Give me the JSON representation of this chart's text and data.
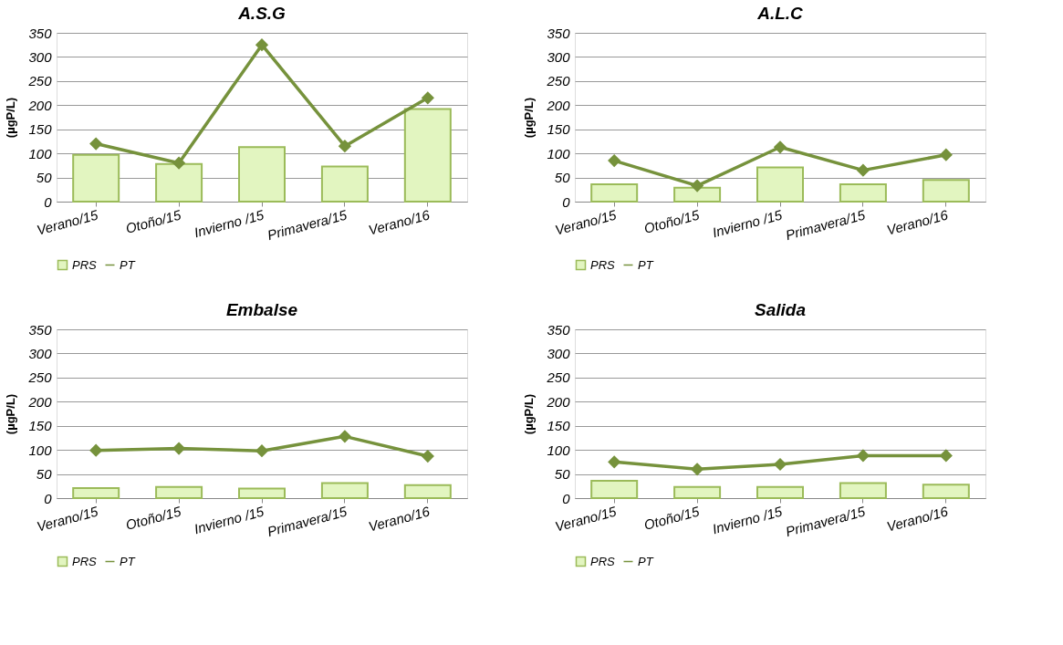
{
  "chart_data": [
    {
      "type": "bar",
      "title": "A.S.G",
      "ylabel": "(µgP/L)",
      "categories": [
        "Verano/15",
        "Otoño/15",
        "Invierno /15",
        "Primavera/15",
        "Verano/16"
      ],
      "ylim": [
        0,
        350
      ],
      "yticks": [
        0,
        50,
        100,
        150,
        200,
        250,
        300,
        350
      ],
      "grid": "y",
      "legend": "bottom",
      "marker": "diamond",
      "series": [
        {
          "name": "PRS",
          "type": "bar",
          "color": "#e2f5c0",
          "values": [
            97,
            78,
            113,
            73,
            192
          ]
        },
        {
          "name": "PT",
          "type": "line",
          "color": "#76923c",
          "values": [
            120,
            80,
            325,
            115,
            215
          ]
        }
      ]
    },
    {
      "type": "bar",
      "title": "A.L.C",
      "ylabel": "(µgP/L)",
      "categories": [
        "Verano/15",
        "Otoño/15",
        "Invierno /15",
        "Primavera/15",
        "Verano/16"
      ],
      "ylim": [
        0,
        350
      ],
      "yticks": [
        0,
        50,
        100,
        150,
        200,
        250,
        300,
        350
      ],
      "grid": "y",
      "legend": "bottom",
      "marker": "diamond",
      "series": [
        {
          "name": "PRS",
          "type": "bar",
          "color": "#e2f5c0",
          "values": [
            36,
            29,
            71,
            36,
            45
          ]
        },
        {
          "name": "PT",
          "type": "line",
          "color": "#76923c",
          "values": [
            85,
            33,
            113,
            65,
            97
          ]
        }
      ]
    },
    {
      "type": "bar",
      "title": "Embalse",
      "ylabel": "(µgP/L)",
      "categories": [
        "Verano/15",
        "Otoño/15",
        "Invierno /15",
        "Primavera/15",
        "Verano/16"
      ],
      "ylim": [
        0,
        350
      ],
      "yticks": [
        0,
        50,
        100,
        150,
        200,
        250,
        300,
        350
      ],
      "grid": "y",
      "legend": "bottom",
      "marker": "diamond",
      "series": [
        {
          "name": "PRS",
          "type": "bar",
          "color": "#e2f5c0",
          "values": [
            21,
            23,
            20,
            31,
            27
          ]
        },
        {
          "name": "PT",
          "type": "line",
          "color": "#76923c",
          "values": [
            99,
            103,
            98,
            128,
            87
          ]
        }
      ]
    },
    {
      "type": "bar",
      "title": "Salida",
      "ylabel": "(µgP/L)",
      "categories": [
        "Verano/15",
        "Otoño/15",
        "Invierno /15",
        "Primavera/15",
        "Verano/16"
      ],
      "ylim": [
        0,
        350
      ],
      "yticks": [
        0,
        50,
        100,
        150,
        200,
        250,
        300,
        350
      ],
      "grid": "y",
      "legend": "bottom",
      "marker": "diamond",
      "series": [
        {
          "name": "PRS",
          "type": "bar",
          "color": "#e2f5c0",
          "values": [
            36,
            23,
            23,
            31,
            28
          ]
        },
        {
          "name": "PT",
          "type": "line",
          "color": "#76923c",
          "values": [
            75,
            60,
            70,
            88,
            88
          ]
        }
      ]
    }
  ]
}
